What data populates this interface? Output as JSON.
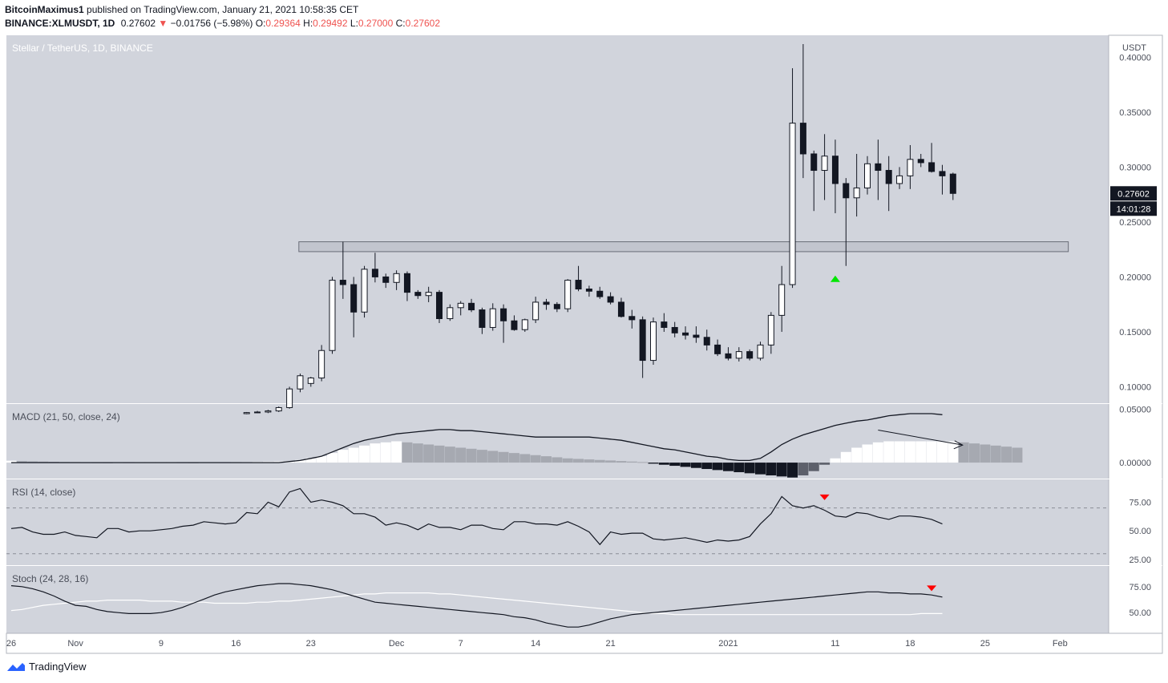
{
  "header": {
    "user": "BitcoinMaximus1",
    "published": "published on TradingView.com, January 21, 2021 10:58:35 CET",
    "symbol": "BINANCE:XLMUSDT, 1D",
    "price": "0.27602",
    "change": "−0.01756 (−5.98%)",
    "o_label": "O:",
    "o_val": "0.29364",
    "h_label": "H:",
    "h_val": "0.29492",
    "l_label": "L:",
    "l_val": "0.27000",
    "c_label": "C:",
    "c_val": "0.27602"
  },
  "colors": {
    "bg": "#d1d4dc",
    "up": "#ffffff",
    "down": "#131722",
    "red": "#ff0000",
    "green": "#00e600",
    "text": "#131722",
    "pane_text": "#4a4e59"
  },
  "chart_data": [
    {
      "type": "candlestick",
      "title": "Stellar / TetherUS, 1D, BINANCE",
      "ylabel": "USDT",
      "ylim": [
        0.085,
        0.42
      ],
      "y_ticks": [
        "0.40000",
        "0.35000",
        "0.30000",
        "0.25000",
        "0.20000",
        "0.15000",
        "0.10000"
      ],
      "x_ticks": [
        {
          "label": "26",
          "day": 0
        },
        {
          "label": "Nov",
          "day": 6
        },
        {
          "label": "9",
          "day": 14
        },
        {
          "label": "16",
          "day": 21
        },
        {
          "label": "23",
          "day": 28
        },
        {
          "label": "Dec",
          "day": 36
        },
        {
          "label": "7",
          "day": 42
        },
        {
          "label": "14",
          "day": 49
        },
        {
          "label": "21",
          "day": 56
        },
        {
          "label": "2021",
          "day": 67
        },
        {
          "label": "11",
          "day": 77
        },
        {
          "label": "18",
          "day": 84
        },
        {
          "label": "25",
          "day": 91
        },
        {
          "label": "Feb",
          "day": 98
        }
      ],
      "last_price": "0.27602",
      "countdown": "14:01:28",
      "support_zone": {
        "low": 0.223,
        "high": 0.232,
        "from_day": 28,
        "to_day": 99
      },
      "bullish_marker": {
        "day": 77,
        "price": 0.199
      },
      "candles": [
        [
          22,
          0.0755,
          0.077,
          0.075,
          0.0765
        ],
        [
          23,
          0.0765,
          0.078,
          0.076,
          0.077
        ],
        [
          24,
          0.077,
          0.079,
          0.076,
          0.078
        ],
        [
          25,
          0.078,
          0.082,
          0.077,
          0.081
        ],
        [
          26,
          0.081,
          0.1,
          0.08,
          0.098
        ],
        [
          27,
          0.098,
          0.112,
          0.095,
          0.11
        ],
        [
          28,
          0.103,
          0.109,
          0.1,
          0.108
        ],
        [
          29,
          0.108,
          0.138,
          0.105,
          0.133
        ],
        [
          30,
          0.133,
          0.2,
          0.13,
          0.197
        ],
        [
          31,
          0.197,
          0.232,
          0.18,
          0.193
        ],
        [
          32,
          0.193,
          0.2,
          0.145,
          0.168
        ],
        [
          33,
          0.168,
          0.21,
          0.163,
          0.207
        ],
        [
          34,
          0.207,
          0.222,
          0.195,
          0.2
        ],
        [
          35,
          0.2,
          0.203,
          0.19,
          0.195
        ],
        [
          36,
          0.195,
          0.206,
          0.188,
          0.203
        ],
        [
          37,
          0.203,
          0.205,
          0.178,
          0.186
        ],
        [
          38,
          0.186,
          0.188,
          0.18,
          0.183
        ],
        [
          39,
          0.183,
          0.191,
          0.177,
          0.186
        ],
        [
          40,
          0.186,
          0.188,
          0.158,
          0.162
        ],
        [
          41,
          0.162,
          0.175,
          0.16,
          0.172
        ],
        [
          42,
          0.172,
          0.178,
          0.165,
          0.176
        ],
        [
          43,
          0.176,
          0.18,
          0.168,
          0.17
        ],
        [
          44,
          0.17,
          0.172,
          0.148,
          0.154
        ],
        [
          45,
          0.154,
          0.176,
          0.151,
          0.171
        ],
        [
          46,
          0.171,
          0.175,
          0.14,
          0.16
        ],
        [
          47,
          0.16,
          0.165,
          0.151,
          0.152
        ],
        [
          48,
          0.152,
          0.162,
          0.15,
          0.161
        ],
        [
          49,
          0.161,
          0.182,
          0.158,
          0.177
        ],
        [
          50,
          0.177,
          0.18,
          0.17,
          0.175
        ],
        [
          51,
          0.175,
          0.177,
          0.168,
          0.171
        ],
        [
          52,
          0.171,
          0.198,
          0.168,
          0.197
        ],
        [
          53,
          0.197,
          0.21,
          0.187,
          0.189
        ],
        [
          54,
          0.189,
          0.192,
          0.182,
          0.187
        ],
        [
          55,
          0.187,
          0.191,
          0.18,
          0.182
        ],
        [
          56,
          0.182,
          0.186,
          0.175,
          0.177
        ],
        [
          57,
          0.177,
          0.181,
          0.163,
          0.164
        ],
        [
          58,
          0.164,
          0.17,
          0.153,
          0.161
        ],
        [
          59,
          0.161,
          0.164,
          0.108,
          0.124
        ],
        [
          60,
          0.124,
          0.163,
          0.12,
          0.159
        ],
        [
          61,
          0.159,
          0.167,
          0.15,
          0.154
        ],
        [
          62,
          0.154,
          0.159,
          0.145,
          0.149
        ],
        [
          63,
          0.149,
          0.155,
          0.143,
          0.147
        ],
        [
          64,
          0.147,
          0.155,
          0.14,
          0.145
        ],
        [
          65,
          0.145,
          0.152,
          0.133,
          0.138
        ],
        [
          66,
          0.138,
          0.143,
          0.128,
          0.13
        ],
        [
          67,
          0.13,
          0.136,
          0.124,
          0.126
        ],
        [
          68,
          0.126,
          0.136,
          0.123,
          0.132
        ],
        [
          69,
          0.132,
          0.134,
          0.124,
          0.126
        ],
        [
          70,
          0.126,
          0.141,
          0.124,
          0.138
        ],
        [
          71,
          0.138,
          0.168,
          0.13,
          0.165
        ],
        [
          72,
          0.165,
          0.21,
          0.15,
          0.193
        ],
        [
          73,
          0.193,
          0.39,
          0.19,
          0.34
        ],
        [
          74,
          0.34,
          0.412,
          0.29,
          0.312
        ],
        [
          75,
          0.312,
          0.315,
          0.26,
          0.297
        ],
        [
          76,
          0.297,
          0.33,
          0.27,
          0.31
        ],
        [
          77,
          0.31,
          0.325,
          0.258,
          0.285
        ],
        [
          78,
          0.285,
          0.29,
          0.21,
          0.272
        ],
        [
          79,
          0.272,
          0.312,
          0.255,
          0.281
        ],
        [
          80,
          0.281,
          0.31,
          0.275,
          0.303
        ],
        [
          81,
          0.303,
          0.325,
          0.27,
          0.297
        ],
        [
          82,
          0.297,
          0.31,
          0.26,
          0.285
        ],
        [
          83,
          0.285,
          0.3,
          0.28,
          0.292
        ],
        [
          84,
          0.292,
          0.32,
          0.28,
          0.307
        ],
        [
          85,
          0.307,
          0.312,
          0.3,
          0.304
        ],
        [
          86,
          0.304,
          0.322,
          0.295,
          0.296
        ],
        [
          87,
          0.296,
          0.302,
          0.275,
          0.292
        ],
        [
          88,
          0.29364,
          0.29492,
          0.27,
          0.27602
        ]
      ]
    },
    {
      "type": "histogram+line",
      "title": "MACD (21, 50, close, 24)",
      "y_ticks": [
        "0.05000",
        "0.00000"
      ],
      "ylim": [
        -0.015,
        0.055
      ],
      "macd": [
        0.0,
        0.0,
        0.0,
        0.0,
        0.0,
        0.0,
        0.0,
        0.0,
        0.0,
        0.0,
        0.0,
        0.0,
        0.0,
        0.0,
        0.0,
        0.0,
        0.0,
        0.0,
        0.0,
        0.0,
        0.0,
        0.0,
        0.0,
        0.0,
        0.0,
        0.0,
        0.001,
        0.002,
        0.004,
        0.006,
        0.01,
        0.014,
        0.018,
        0.021,
        0.023,
        0.025,
        0.027,
        0.028,
        0.029,
        0.03,
        0.031,
        0.031,
        0.03,
        0.03,
        0.029,
        0.028,
        0.027,
        0.026,
        0.025,
        0.024,
        0.024,
        0.024,
        0.024,
        0.024,
        0.024,
        0.023,
        0.022,
        0.021,
        0.019,
        0.017,
        0.015,
        0.013,
        0.012,
        0.01,
        0.008,
        0.006,
        0.005,
        0.003,
        0.002,
        0.002,
        0.004,
        0.01,
        0.017,
        0.022,
        0.026,
        0.029,
        0.032,
        0.035,
        0.037,
        0.039,
        0.04,
        0.042,
        0.044,
        0.045,
        0.046,
        0.046,
        0.046,
        0.045
      ],
      "histogram": [
        0.0018,
        0.0015,
        0.0012,
        0.001,
        0.0008,
        0.0006,
        0.0005,
        0.0004,
        0.0003,
        0.0002,
        0.0003,
        0.0004,
        0.0005,
        0.0005,
        0.0005,
        0.0005,
        0.0004,
        0.0003,
        0.0003,
        0.0003,
        0.0004,
        0.0005,
        0.0006,
        0.0008,
        0.001,
        0.0012,
        0.0015,
        0.0025,
        0.004,
        0.006,
        0.009,
        0.012,
        0.014,
        0.016,
        0.018,
        0.019,
        0.02,
        0.019,
        0.018,
        0.017,
        0.016,
        0.015,
        0.014,
        0.013,
        0.012,
        0.011,
        0.01,
        0.009,
        0.008,
        0.007,
        0.006,
        0.005,
        0.004,
        0.0035,
        0.003,
        0.0025,
        0.002,
        0.0015,
        0.001,
        0.0005,
        -0.001,
        -0.002,
        -0.003,
        -0.004,
        -0.005,
        -0.006,
        -0.007,
        -0.008,
        -0.009,
        -0.01,
        -0.011,
        -0.012,
        -0.013,
        -0.014,
        -0.012,
        -0.008,
        -0.002,
        0.004,
        0.01,
        0.014,
        0.017,
        0.019,
        0.02,
        0.02,
        0.02,
        0.02,
        0.02,
        0.02,
        0.02,
        0.019,
        0.018,
        0.017,
        0.016,
        0.015,
        0.014
      ]
    },
    {
      "type": "line",
      "title": "RSI (14, close)",
      "y_ticks": [
        "75.00",
        "50.00",
        "25.00"
      ],
      "ylim": [
        20,
        95
      ],
      "values": [
        52,
        53,
        49,
        47,
        47,
        49,
        46,
        45,
        44,
        52,
        52,
        49,
        50,
        50,
        51,
        52,
        54,
        55,
        58,
        57,
        56,
        57,
        66,
        65,
        75,
        71,
        84,
        87,
        75,
        77,
        75,
        72,
        65,
        65,
        62,
        55,
        57,
        55,
        51,
        56,
        53,
        53,
        51,
        55,
        55,
        52,
        51,
        58,
        58,
        56,
        56,
        55,
        58,
        54,
        49,
        38,
        49,
        47,
        48,
        48,
        43,
        42,
        43,
        44,
        42,
        40,
        42,
        41,
        42,
        45,
        56,
        65,
        80,
        72,
        70,
        72,
        68,
        63,
        62,
        66,
        65,
        62,
        60,
        63,
        63,
        62,
        60,
        56
      ],
      "down_markers": [
        {
          "day": 76,
          "value": 79
        }
      ]
    },
    {
      "type": "line",
      "title": "Stoch (24, 28, 16)",
      "y_ticks": [
        "75.00",
        "50.00"
      ],
      "ylim": [
        30,
        95
      ],
      "k": [
        76,
        75,
        73,
        70,
        66,
        61,
        57,
        56,
        53,
        51,
        50,
        49,
        49,
        49,
        50,
        52,
        55,
        59,
        63,
        67,
        70,
        72,
        74,
        76,
        77,
        78,
        78,
        77,
        76,
        74,
        72,
        69,
        66,
        63,
        60,
        59,
        58,
        57,
        56,
        55,
        54,
        53,
        52,
        51,
        50,
        49,
        48,
        46,
        45,
        43,
        40,
        38,
        36,
        36,
        38,
        41,
        44,
        46,
        48,
        49,
        50,
        51,
        52,
        53,
        54,
        55,
        56,
        57,
        58,
        59,
        60,
        61,
        62,
        63,
        64,
        65,
        66,
        67,
        68,
        69,
        70,
        70,
        69,
        69,
        68,
        68,
        67,
        65
      ],
      "d": [
        52,
        53,
        55,
        57,
        58,
        59,
        60,
        61,
        61,
        62,
        62,
        62,
        62,
        61,
        61,
        61,
        60,
        60,
        60,
        59,
        59,
        59,
        59,
        60,
        60,
        61,
        61,
        62,
        63,
        64,
        65,
        66,
        67,
        68,
        68,
        69,
        69,
        69,
        69,
        69,
        68,
        68,
        67,
        66,
        65,
        64,
        63,
        62,
        61,
        60,
        59,
        58,
        57,
        56,
        55,
        54,
        53,
        52,
        51,
        50,
        49,
        49,
        48,
        48,
        48,
        48,
        48,
        48,
        48,
        48,
        48,
        48,
        48,
        48,
        48,
        48,
        48,
        48,
        48,
        48,
        48,
        48,
        48,
        48,
        48,
        49,
        49,
        49
      ],
      "down_markers": [
        {
          "day": 86,
          "value": 73
        }
      ]
    }
  ],
  "footer": {
    "brand": "TradingView"
  }
}
